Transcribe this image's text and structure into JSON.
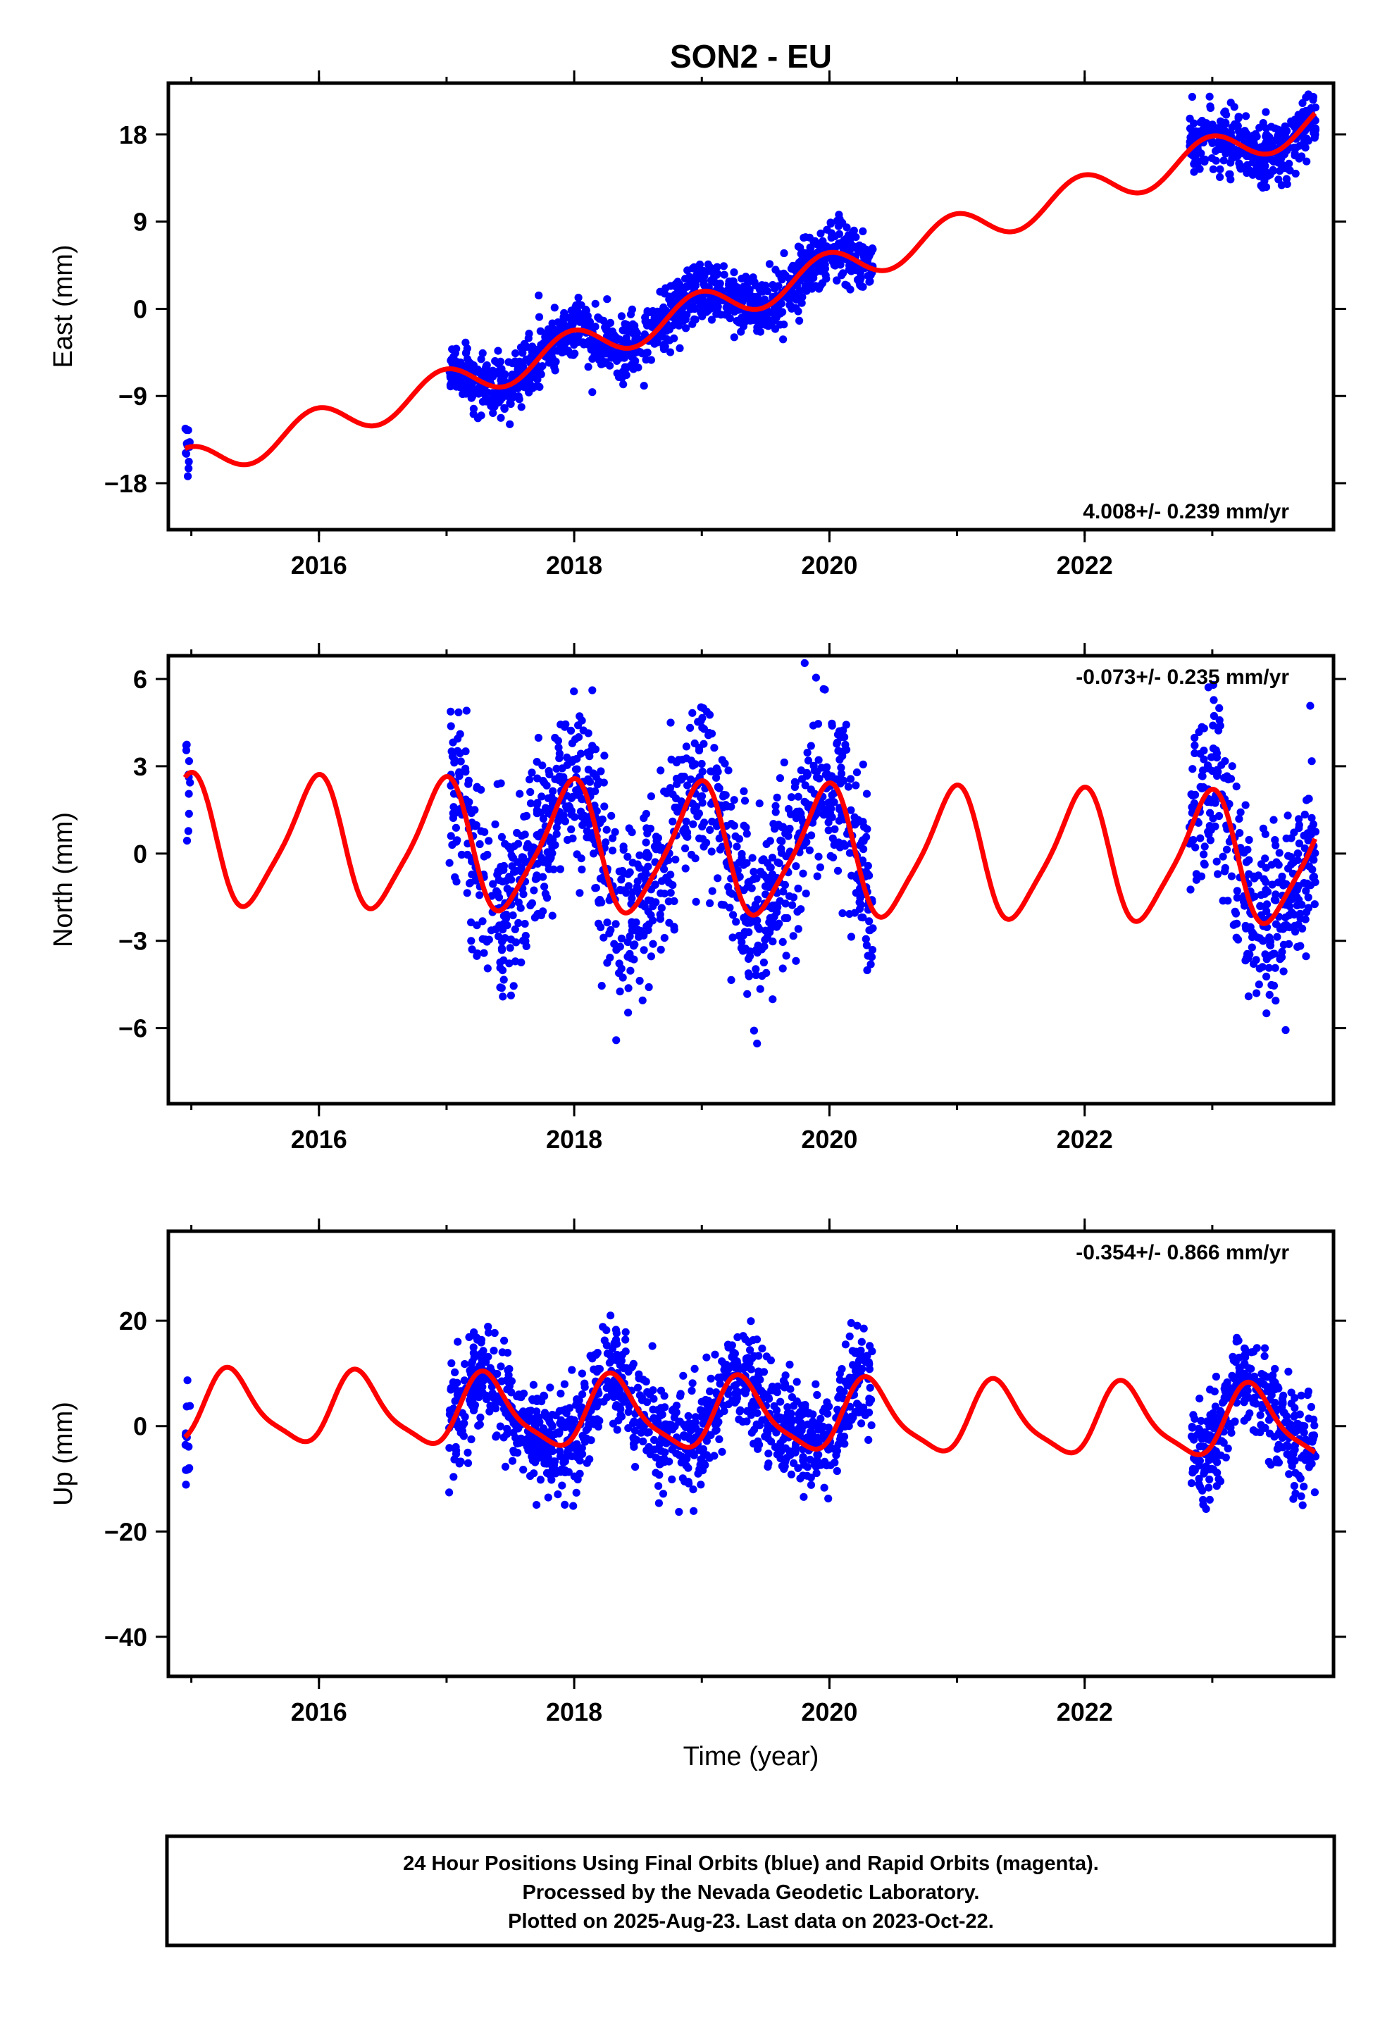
{
  "title": "SON2 - EU",
  "colors": {
    "final_orbits": "#0000ff",
    "model": "#ff0000",
    "frame": "#000000"
  },
  "footer": {
    "line1": "24 Hour Positions Using Final Orbits (blue) and Rapid Orbits (magenta).",
    "line2": "Processed by the Nevada Geodetic Laboratory.",
    "line3": "Plotted on 2025-Aug-23. Last data on 2023-Oct-22."
  },
  "chart_data": [
    {
      "type": "scatter",
      "ylabel": "East (mm)",
      "xlabel": "",
      "xlim": [
        2014.82,
        2023.95
      ],
      "ylim": [
        -22.8,
        23.3
      ],
      "xticks": [
        2016,
        2018,
        2020,
        2022
      ],
      "xtick_labels": [
        "2016",
        "2018",
        "2020",
        "2022"
      ],
      "yticks": [
        -18,
        -9,
        0,
        9,
        18
      ],
      "ytick_labels": [
        "−18",
        "−9",
        "0",
        "9",
        "18"
      ],
      "rate_label": "4.008+/- 0.239 mm/yr",
      "rate_position": "bottom-right",
      "segments": [
        {
          "start": 2014.95,
          "end": 2014.99,
          "points": 14
        },
        {
          "start": 2017.02,
          "end": 2020.34,
          "points": 1150
        },
        {
          "start": 2022.82,
          "end": 2023.81,
          "points": 340
        }
      ],
      "model": {
        "rate": 4.008,
        "intercept": 0.0,
        "reference_epoch": 2019.0,
        "annual_sin": -0.35,
        "annual_cos": 1.8,
        "semiannual_sin": 0.0,
        "semiannual_cos": 0.0,
        "offsets": [],
        "noise_sd": 1.6,
        "curve_start": 2014.95,
        "curve_end": 2023.81
      }
    },
    {
      "type": "scatter",
      "ylabel": "North (mm)",
      "xlabel": "",
      "xlim": [
        2014.82,
        2023.95
      ],
      "ylim": [
        -8.6,
        6.8
      ],
      "xticks": [
        2016,
        2018,
        2020,
        2022
      ],
      "xtick_labels": [
        "2016",
        "2018",
        "2020",
        "2022"
      ],
      "yticks": [
        -6,
        -3,
        0,
        3,
        6
      ],
      "ytick_labels": [
        "−6",
        "−3",
        "0",
        "3",
        "6"
      ],
      "rate_label": "-0.073+/- 0.235 mm/yr",
      "rate_position": "top-right",
      "segments": [
        {
          "start": 2014.95,
          "end": 2014.99,
          "points": 12
        },
        {
          "start": 2017.02,
          "end": 2020.34,
          "points": 1150
        },
        {
          "start": 2022.82,
          "end": 2023.81,
          "points": 340
        }
      ],
      "model": {
        "rate": -0.073,
        "intercept": 0.1,
        "reference_epoch": 2019.0,
        "annual_sin": -0.5,
        "annual_cos": 2.1,
        "semiannual_sin": 0.3,
        "semiannual_cos": 0.3,
        "offsets": [],
        "noise_sd": 1.5,
        "curve_start": 2014.95,
        "curve_end": 2023.81
      }
    },
    {
      "type": "scatter",
      "ylabel": "Up (mm)",
      "xlabel": "Time (year)",
      "xlim": [
        2014.82,
        2023.95
      ],
      "ylim": [
        -47.5,
        37.0
      ],
      "xticks": [
        2016,
        2018,
        2020,
        2022
      ],
      "xtick_labels": [
        "2016",
        "2018",
        "2020",
        "2022"
      ],
      "yticks": [
        -40,
        -20,
        0,
        20
      ],
      "ytick_labels": [
        "−40",
        "−20",
        "0",
        "20"
      ],
      "rate_label": "-0.354+/- 0.866 mm/yr",
      "rate_position": "top-right",
      "segments": [
        {
          "start": 2014.95,
          "end": 2014.99,
          "points": 14
        },
        {
          "start": 2017.02,
          "end": 2020.34,
          "points": 1150
        },
        {
          "start": 2022.82,
          "end": 2023.81,
          "points": 340
        }
      ],
      "model": {
        "rate": -0.354,
        "intercept": 2.0,
        "reference_epoch": 2019.0,
        "annual_sin": 6.0,
        "annual_cos": -2.5,
        "semiannual_sin": 0.0,
        "semiannual_cos": -1.6,
        "offsets": [],
        "noise_sd": 4.8,
        "curve_start": 2014.95,
        "curve_end": 2023.81
      }
    }
  ]
}
